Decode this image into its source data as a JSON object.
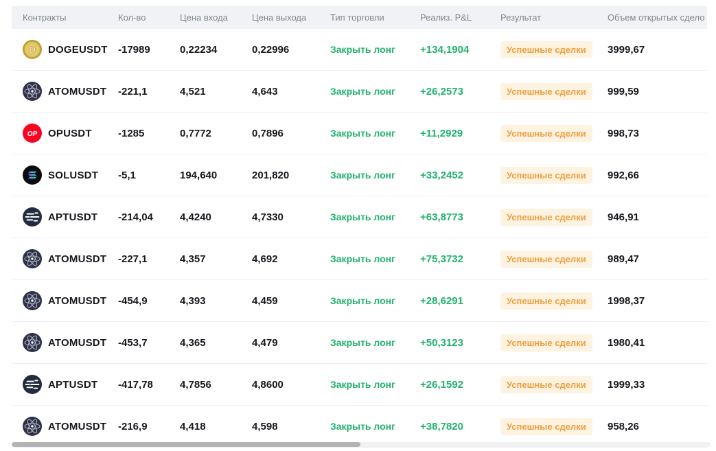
{
  "table": {
    "columns": [
      {
        "key": "contracts",
        "label": "Контракты"
      },
      {
        "key": "qty",
        "label": "Кол-во"
      },
      {
        "key": "entry_price",
        "label": "Цена входа"
      },
      {
        "key": "exit_price",
        "label": "Цена выхода"
      },
      {
        "key": "trade_type",
        "label": "Тип торговли"
      },
      {
        "key": "realized_pnl",
        "label": "Реализ. P&L"
      },
      {
        "key": "result",
        "label": "Результат"
      },
      {
        "key": "open_volume",
        "label": "Объем открытых сдело"
      }
    ],
    "rows": [
      {
        "symbol": "DOGEUSDT",
        "icon": "doge",
        "qty": "-17989",
        "entry": "0,22234",
        "exit": "0,22996",
        "trade_type": "Закрыть лонг",
        "pnl": "+134,1904",
        "result": "Успешные сделки",
        "volume": "3999,67"
      },
      {
        "symbol": "ATOMUSDT",
        "icon": "atom",
        "qty": "-221,1",
        "entry": "4,521",
        "exit": "4,643",
        "trade_type": "Закрыть лонг",
        "pnl": "+26,2573",
        "result": "Успешные сделки",
        "volume": "999,59"
      },
      {
        "symbol": "OPUSDT",
        "icon": "op",
        "qty": "-1285",
        "entry": "0,7772",
        "exit": "0,7896",
        "trade_type": "Закрыть лонг",
        "pnl": "+11,2929",
        "result": "Успешные сделки",
        "volume": "998,73"
      },
      {
        "symbol": "SOLUSDT",
        "icon": "sol",
        "qty": "-5,1",
        "entry": "194,640",
        "exit": "201,820",
        "trade_type": "Закрыть лонг",
        "pnl": "+33,2452",
        "result": "Успешные сделки",
        "volume": "992,66"
      },
      {
        "symbol": "APTUSDT",
        "icon": "apt",
        "qty": "-214,04",
        "entry": "4,4240",
        "exit": "4,7330",
        "trade_type": "Закрыть лонг",
        "pnl": "+63,8773",
        "result": "Успешные сделки",
        "volume": "946,91"
      },
      {
        "symbol": "ATOMUSDT",
        "icon": "atom",
        "qty": "-227,1",
        "entry": "4,357",
        "exit": "4,692",
        "trade_type": "Закрыть лонг",
        "pnl": "+75,3732",
        "result": "Успешные сделки",
        "volume": "989,47"
      },
      {
        "symbol": "ATOMUSDT",
        "icon": "atom",
        "qty": "-454,9",
        "entry": "4,393",
        "exit": "4,459",
        "trade_type": "Закрыть лонг",
        "pnl": "+28,6291",
        "result": "Успешные сделки",
        "volume": "1998,37"
      },
      {
        "symbol": "ATOMUSDT",
        "icon": "atom",
        "qty": "-453,7",
        "entry": "4,365",
        "exit": "4,479",
        "trade_type": "Закрыть лонг",
        "pnl": "+50,3123",
        "result": "Успешные сделки",
        "volume": "1980,41"
      },
      {
        "symbol": "APTUSDT",
        "icon": "apt",
        "qty": "-417,78",
        "entry": "4,7856",
        "exit": "4,8600",
        "trade_type": "Закрыть лонг",
        "pnl": "+26,1592",
        "result": "Успешные сделки",
        "volume": "1999,33"
      },
      {
        "symbol": "ATOMUSDT",
        "icon": "atom",
        "qty": "-216,9",
        "entry": "4,418",
        "exit": "4,598",
        "trade_type": "Закрыть лонг",
        "pnl": "+38,7820",
        "result": "Успешные сделки",
        "volume": "958,26"
      }
    ]
  },
  "colors": {
    "positive_green": "#20b26c",
    "badge_text_orange": "#ef9e40",
    "badge_background": "#fdf3e0",
    "header_background": "#f0f2f5",
    "header_text": "#82868c",
    "body_text": "#16181d"
  }
}
